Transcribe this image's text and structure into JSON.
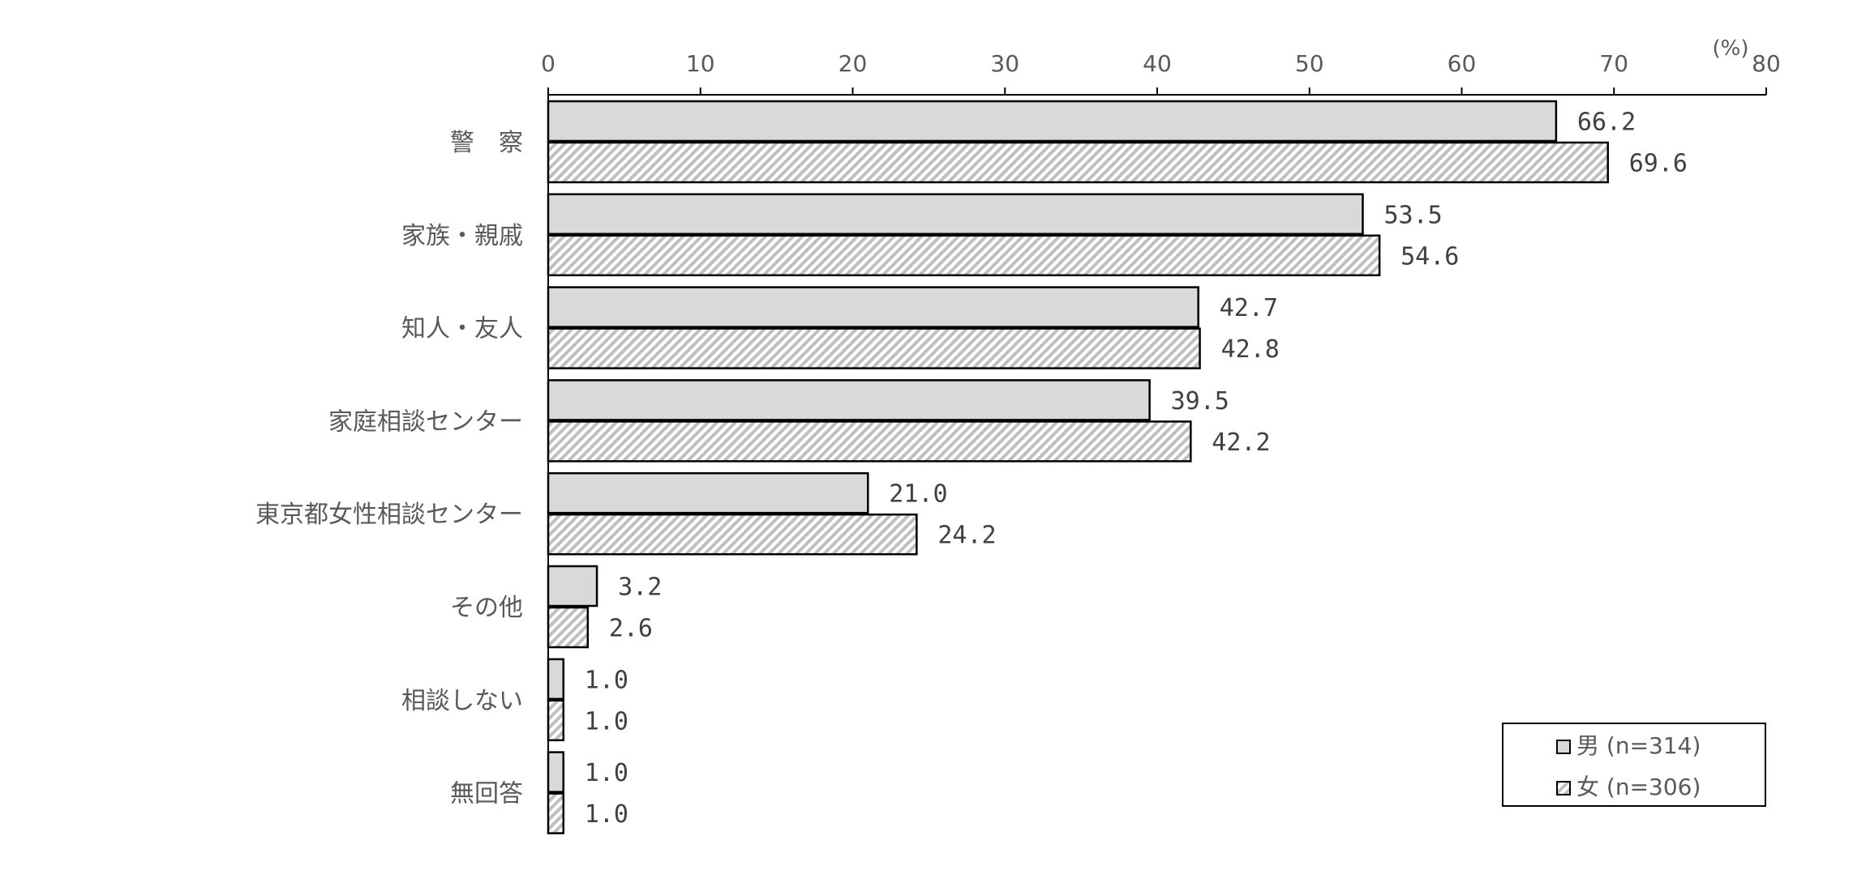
{
  "chart_data": {
    "type": "bar",
    "orientation": "horizontal",
    "unit": "(%)",
    "categories": [
      "警　察",
      "家族・親戚",
      "知人・友人",
      "家庭相談センター",
      "東京都女性相談センター",
      "その他",
      "相談しない",
      "無回答"
    ],
    "series": [
      {
        "name": "男 (n=314)",
        "values": [
          66.2,
          53.5,
          42.7,
          39.5,
          21.0,
          3.2,
          1.0,
          1.0
        ],
        "value_labels": [
          "66.2",
          "53.5",
          "42.7",
          "39.5",
          "21.0",
          "3.2",
          "1.0",
          "1.0"
        ],
        "color": "#d9d9d9",
        "pattern": "solid"
      },
      {
        "name": "女 (n=306)",
        "values": [
          69.6,
          54.6,
          42.8,
          42.2,
          24.2,
          2.6,
          1.0,
          1.0
        ],
        "value_labels": [
          "69.6",
          "54.6",
          "42.8",
          "42.2",
          "24.2",
          "2.6",
          "1.0",
          "1.0"
        ],
        "color": "#bfbfbf",
        "pattern": "diagonal-hatch"
      }
    ],
    "xlim": [
      0,
      80
    ],
    "xticks": [
      "0",
      "10",
      "20",
      "30",
      "40",
      "50",
      "60",
      "70",
      "80"
    ],
    "x_axis_position": "top",
    "grid": false,
    "legend_position": "bottom-right",
    "title": "",
    "xlabel": "",
    "ylabel": ""
  }
}
